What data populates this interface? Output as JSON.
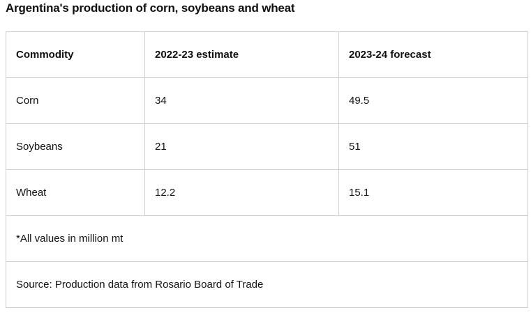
{
  "title": "Argentina's production of corn, soybeans and wheat",
  "chart_data": {
    "type": "table",
    "title": "Argentina's production of corn, soybeans and wheat",
    "columns": [
      "Commodity",
      "2022-23 estimate",
      "2023-24 forecast"
    ],
    "rows": [
      [
        "Corn",
        "34",
        "49.5"
      ],
      [
        "Soybeans",
        "21",
        "51"
      ],
      [
        "Wheat",
        "12.2",
        "15.1"
      ]
    ],
    "notes": [
      "*All values in million mt",
      "Source: Production data from Rosario Board of Trade"
    ]
  }
}
